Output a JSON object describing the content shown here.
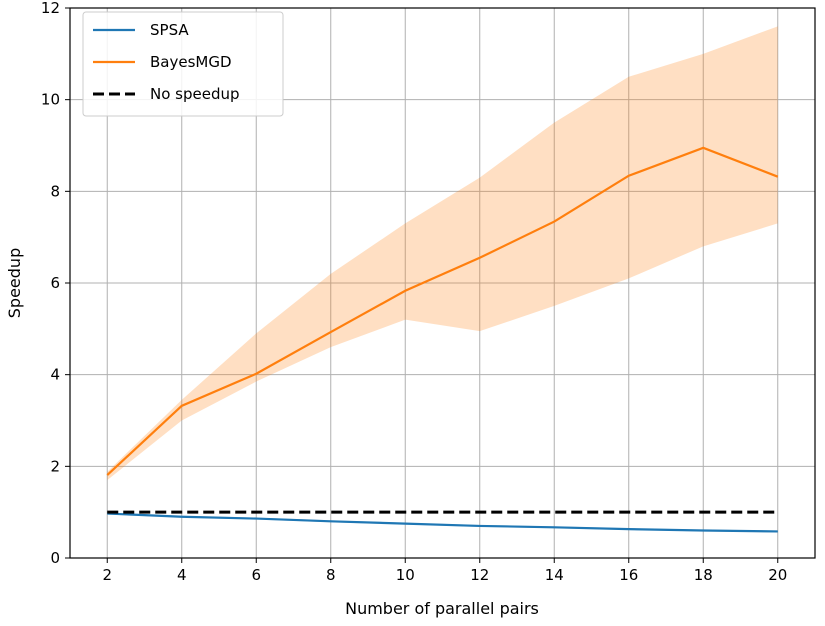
{
  "chart_data": {
    "type": "line",
    "title": "",
    "xlabel": "Number of parallel pairs",
    "ylabel": "Speedup",
    "xlim": [
      1,
      21
    ],
    "ylim": [
      0,
      12
    ],
    "xticks": [
      2,
      4,
      6,
      8,
      10,
      12,
      14,
      16,
      18,
      20
    ],
    "yticks": [
      0,
      2,
      4,
      6,
      8,
      10,
      12
    ],
    "grid": true,
    "legend_position": "top-left",
    "x": [
      2,
      4,
      6,
      8,
      10,
      12,
      14,
      16,
      18,
      20
    ],
    "series": [
      {
        "name": "SPSA",
        "color": "#1f77b4",
        "values": [
          0.97,
          0.9,
          0.86,
          0.8,
          0.75,
          0.7,
          0.67,
          0.63,
          0.6,
          0.58
        ],
        "lower": [
          0.95,
          0.88,
          0.84,
          0.78,
          0.73,
          0.68,
          0.65,
          0.61,
          0.58,
          0.56
        ],
        "upper": [
          0.99,
          0.92,
          0.88,
          0.82,
          0.77,
          0.72,
          0.69,
          0.65,
          0.62,
          0.6
        ]
      },
      {
        "name": "BayesMGD",
        "color": "#ff7f0e",
        "values": [
          1.81,
          3.32,
          4.02,
          4.93,
          5.83,
          6.55,
          7.34,
          8.34,
          8.95,
          8.32
        ],
        "lower": [
          1.7,
          3.0,
          3.85,
          4.6,
          5.2,
          4.95,
          5.5,
          6.1,
          6.8,
          7.3
        ],
        "upper": [
          1.88,
          3.45,
          4.9,
          6.2,
          7.3,
          8.3,
          9.5,
          10.5,
          11.0,
          11.6
        ]
      },
      {
        "name": "No speedup",
        "color": "#000000",
        "dashed": true,
        "values": [
          1,
          1,
          1,
          1,
          1,
          1,
          1,
          1,
          1,
          1
        ]
      }
    ]
  }
}
